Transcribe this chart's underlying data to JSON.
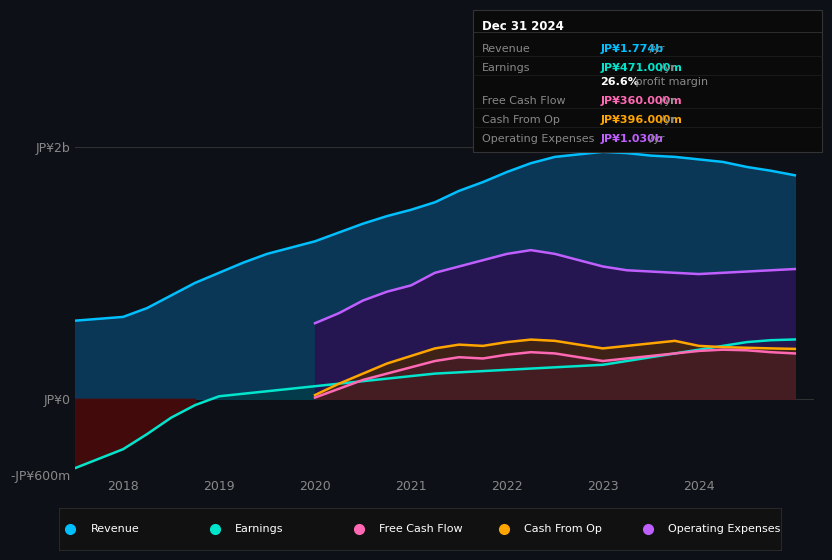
{
  "bg_color": "#0d1117",
  "title_box": {
    "date": "Dec 31 2024",
    "rows": [
      {
        "label": "Revenue",
        "value": "JP¥1.774b",
        "unit": " /yr",
        "color": "#00bfff"
      },
      {
        "label": "Earnings",
        "value": "JP¥471.000m",
        "unit": " /yr",
        "color": "#00e5cc"
      },
      {
        "label": "",
        "value": "26.6%",
        "unit": " profit margin",
        "color": "#ffffff",
        "bold_value": true
      },
      {
        "label": "Free Cash Flow",
        "value": "JP¥360.000m",
        "unit": " /yr",
        "color": "#ff69b4"
      },
      {
        "label": "Cash From Op",
        "value": "JP¥396.000m",
        "unit": " /yr",
        "color": "#ffa500"
      },
      {
        "label": "Operating Expenses",
        "value": "JP¥1.030b",
        "unit": " /yr",
        "color": "#bf5fff"
      }
    ]
  },
  "ylim": [
    -600,
    2200
  ],
  "yticks": [
    -600,
    0,
    2000
  ],
  "ytick_labels": [
    "-JP¥600m",
    "JP¥0",
    "JP¥2b"
  ],
  "xlim_min": 2017.5,
  "xlim_max": 2025.2,
  "xticks": [
    2018,
    2019,
    2020,
    2021,
    2022,
    2023,
    2024
  ],
  "series": {
    "revenue": {
      "color": "#00bfff",
      "fill_color": "#0a3a5a",
      "x": [
        2017.5,
        2018.0,
        2018.25,
        2018.5,
        2018.75,
        2019.0,
        2019.25,
        2019.5,
        2019.75,
        2020.0,
        2020.25,
        2020.5,
        2020.75,
        2021.0,
        2021.25,
        2021.5,
        2021.75,
        2022.0,
        2022.25,
        2022.5,
        2022.75,
        2023.0,
        2023.25,
        2023.5,
        2023.75,
        2024.0,
        2024.25,
        2024.5,
        2024.75,
        2025.0
      ],
      "y": [
        620,
        650,
        720,
        820,
        920,
        1000,
        1080,
        1150,
        1200,
        1250,
        1320,
        1390,
        1450,
        1500,
        1560,
        1650,
        1720,
        1800,
        1870,
        1920,
        1940,
        1960,
        1950,
        1930,
        1920,
        1900,
        1880,
        1840,
        1810,
        1774
      ]
    },
    "earnings": {
      "color": "#00e5cc",
      "x": [
        2017.5,
        2018.0,
        2018.25,
        2018.5,
        2018.75,
        2019.0,
        2019.25,
        2019.5,
        2019.75,
        2020.0,
        2020.25,
        2020.5,
        2020.75,
        2021.0,
        2021.25,
        2021.5,
        2021.75,
        2022.0,
        2022.25,
        2022.5,
        2022.75,
        2023.0,
        2023.25,
        2023.5,
        2023.75,
        2024.0,
        2024.25,
        2024.5,
        2024.75,
        2025.0
      ],
      "y": [
        -550,
        -400,
        -280,
        -150,
        -50,
        20,
        40,
        60,
        80,
        100,
        120,
        140,
        160,
        180,
        200,
        210,
        220,
        230,
        240,
        250,
        260,
        270,
        300,
        330,
        360,
        390,
        420,
        450,
        465,
        471
      ]
    },
    "free_cash_flow": {
      "color": "#ff69b4",
      "x": [
        2020.0,
        2020.25,
        2020.5,
        2020.75,
        2021.0,
        2021.25,
        2021.5,
        2021.75,
        2022.0,
        2022.25,
        2022.5,
        2022.75,
        2023.0,
        2023.25,
        2023.5,
        2023.75,
        2024.0,
        2024.25,
        2024.5,
        2024.75,
        2025.0
      ],
      "y": [
        10,
        80,
        150,
        200,
        250,
        300,
        330,
        320,
        350,
        370,
        360,
        330,
        300,
        320,
        340,
        360,
        380,
        390,
        385,
        370,
        360
      ]
    },
    "cash_from_op": {
      "color": "#ffa500",
      "x": [
        2020.0,
        2020.25,
        2020.5,
        2020.75,
        2021.0,
        2021.25,
        2021.5,
        2021.75,
        2022.0,
        2022.25,
        2022.5,
        2022.75,
        2023.0,
        2023.25,
        2023.5,
        2023.75,
        2024.0,
        2024.25,
        2024.5,
        2024.75,
        2025.0
      ],
      "y": [
        30,
        120,
        200,
        280,
        340,
        400,
        430,
        420,
        450,
        470,
        460,
        430,
        400,
        420,
        440,
        460,
        420,
        410,
        405,
        400,
        396
      ]
    },
    "operating_expenses": {
      "color": "#bf5fff",
      "x": [
        2020.0,
        2020.25,
        2020.5,
        2020.75,
        2021.0,
        2021.25,
        2021.5,
        2021.75,
        2022.0,
        2022.25,
        2022.5,
        2022.75,
        2023.0,
        2023.25,
        2023.5,
        2023.75,
        2024.0,
        2024.25,
        2024.5,
        2024.75,
        2025.0
      ],
      "y": [
        600,
        680,
        780,
        850,
        900,
        1000,
        1050,
        1100,
        1150,
        1180,
        1150,
        1100,
        1050,
        1020,
        1010,
        1000,
        990,
        1000,
        1010,
        1020,
        1030
      ]
    }
  },
  "legend": [
    {
      "label": "Revenue",
      "color": "#00bfff"
    },
    {
      "label": "Earnings",
      "color": "#00e5cc"
    },
    {
      "label": "Free Cash Flow",
      "color": "#ff69b4"
    },
    {
      "label": "Cash From Op",
      "color": "#ffa500"
    },
    {
      "label": "Operating Expenses",
      "color": "#bf5fff"
    }
  ]
}
